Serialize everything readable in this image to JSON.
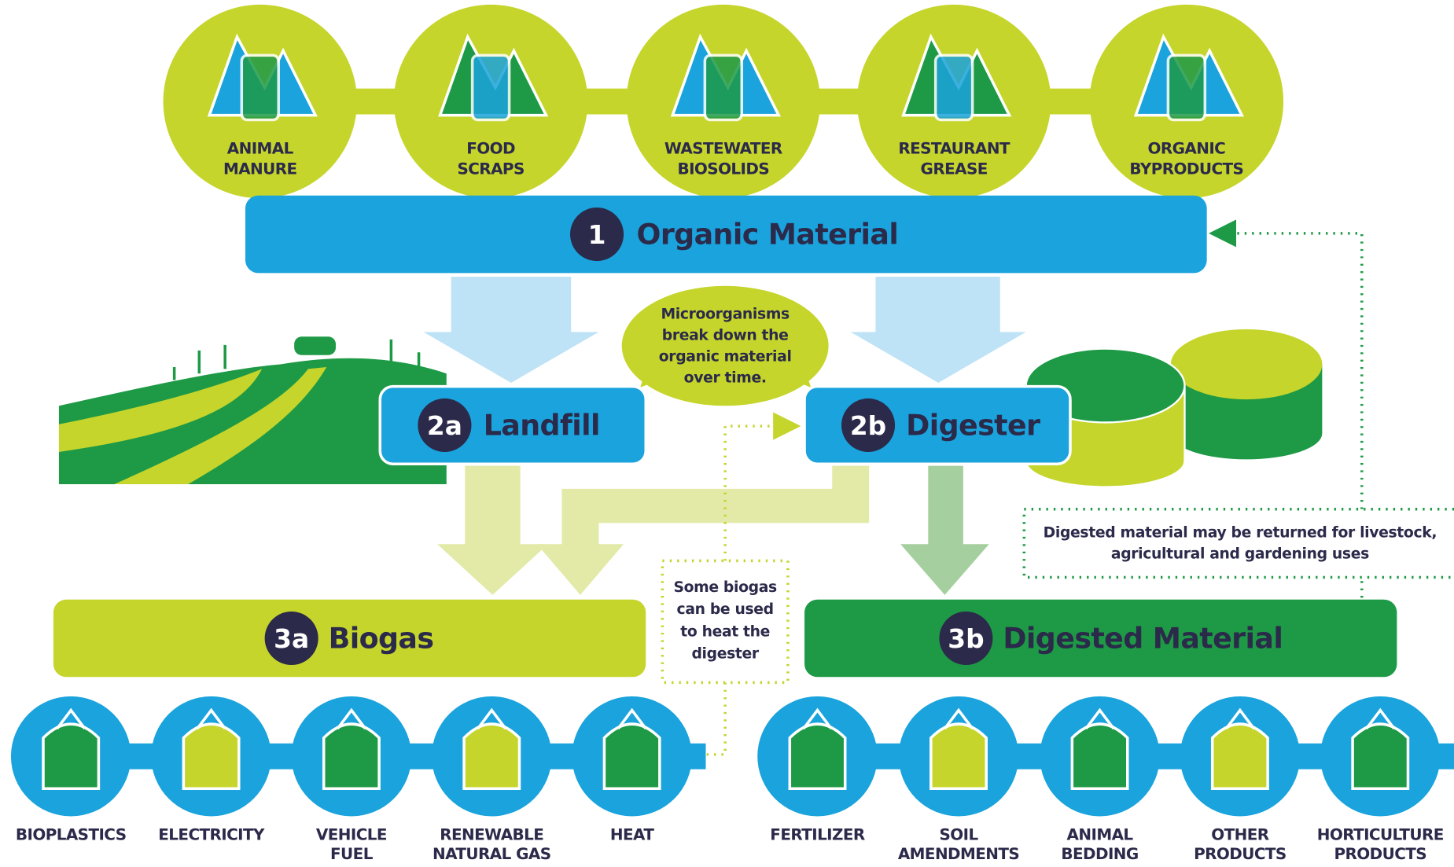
{
  "inputs": [
    [
      "ANIMAL",
      "MANURE"
    ],
    [
      "FOOD",
      "SCRAPS"
    ],
    [
      "WASTEWATER",
      "BIOSOLIDS"
    ],
    [
      "RESTAURANT",
      "GREASE"
    ],
    [
      "ORGANIC",
      "BYPRODUCTS"
    ]
  ],
  "steps": {
    "organic": {
      "number": "1",
      "label": "Organic Material"
    },
    "landfill": {
      "number": "2a",
      "label": "Landfill"
    },
    "digester": {
      "number": "2b",
      "label": "Digester"
    },
    "biogas": {
      "number": "3a",
      "label": "Biogas"
    },
    "digested": {
      "number": "3b",
      "label": "Digested Material"
    }
  },
  "notes": {
    "microorganisms": [
      "Microorganisms",
      "break down the",
      "organic material",
      "over time."
    ],
    "biogas_heat": [
      "Some biogas",
      "can be used",
      "to heat the",
      "digester"
    ],
    "returned": [
      "Digested material may be returned for livestock,",
      "agricultural and gardening uses"
    ]
  },
  "biogas_uses": [
    [
      "BIOPLASTICS"
    ],
    [
      "ELECTRICITY"
    ],
    [
      "VEHICLE",
      "FUEL"
    ],
    [
      "RENEWABLE",
      "NATURAL GAS"
    ],
    [
      "HEAT"
    ]
  ],
  "digested_uses": [
    [
      "FERTILIZER"
    ],
    [
      "SOIL",
      "AMENDMENTS"
    ],
    [
      "ANIMAL",
      "BEDDING"
    ],
    [
      "OTHER",
      "PRODUCTS"
    ],
    [
      "HORTICULTURE",
      "PRODUCTS"
    ]
  ]
}
